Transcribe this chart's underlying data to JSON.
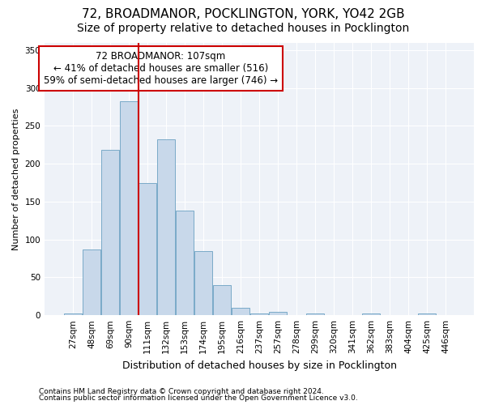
{
  "title1": "72, BROADMANOR, POCKLINGTON, YORK, YO42 2GB",
  "title2": "Size of property relative to detached houses in Pocklington",
  "xlabel": "Distribution of detached houses by size in Pocklington",
  "ylabel": "Number of detached properties",
  "footnote1": "Contains HM Land Registry data © Crown copyright and database right 2024.",
  "footnote2": "Contains public sector information licensed under the Open Government Licence v3.0.",
  "annotation_line1": "72 BROADMANOR: 107sqm",
  "annotation_line2": "← 41% of detached houses are smaller (516)",
  "annotation_line3": "59% of semi-detached houses are larger (746) →",
  "bar_color": "#c8d8ea",
  "bar_edge_color": "#7aaac8",
  "vline_color": "#cc0000",
  "annotation_box_color": "#cc0000",
  "background_color": "#eef2f8",
  "grid_color": "#ffffff",
  "categories": [
    "27sqm",
    "48sqm",
    "69sqm",
    "90sqm",
    "111sqm",
    "132sqm",
    "153sqm",
    "174sqm",
    "195sqm",
    "216sqm",
    "237sqm",
    "257sqm",
    "278sqm",
    "299sqm",
    "320sqm",
    "341sqm",
    "362sqm",
    "383sqm",
    "404sqm",
    "425sqm",
    "446sqm"
  ],
  "values": [
    2,
    87,
    218,
    283,
    175,
    232,
    138,
    85,
    40,
    10,
    2,
    5,
    0,
    2,
    0,
    0,
    2,
    0,
    0,
    2,
    0
  ],
  "ylim": [
    0,
    360
  ],
  "yticks": [
    0,
    50,
    100,
    150,
    200,
    250,
    300,
    350
  ],
  "vline_x": 3.5,
  "title_fontsize": 11,
  "subtitle_fontsize": 10,
  "ylabel_fontsize": 8,
  "xlabel_fontsize": 9,
  "tick_fontsize": 7.5,
  "footnote_fontsize": 6.5,
  "annotation_fontsize": 8.5
}
